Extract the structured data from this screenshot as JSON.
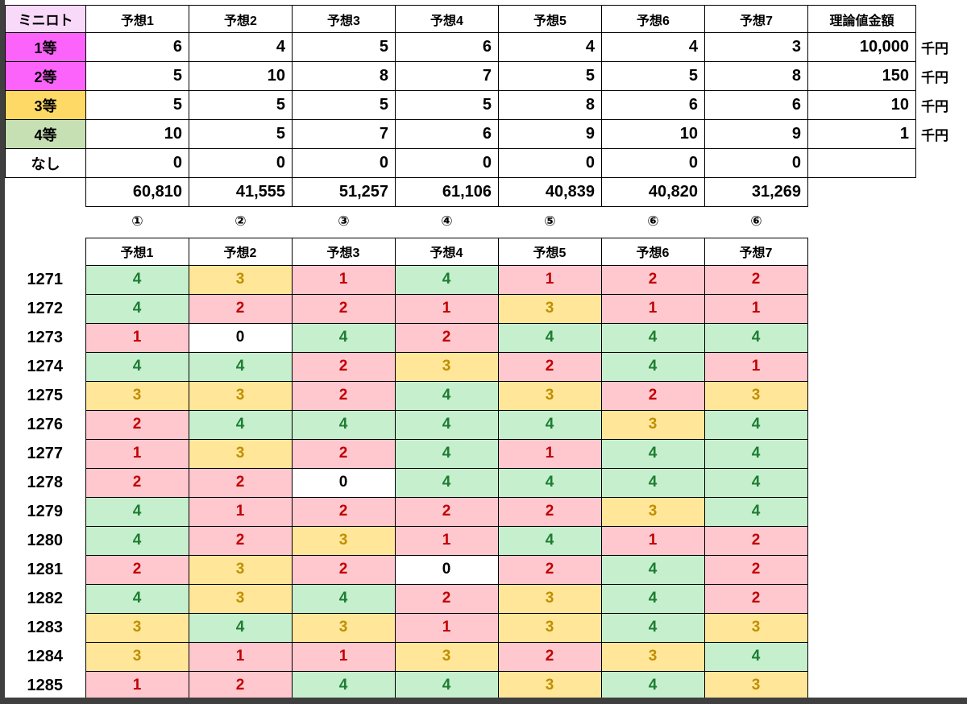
{
  "colors": {
    "cell_green_bg": "#C6EFCE",
    "cell_green_text": "#1E7D32",
    "cell_pink_bg": "#FFC7CE",
    "cell_pink_text": "#C00000",
    "cell_yellow_bg": "#FFE699",
    "cell_yellow_text": "#BF8F00",
    "label_magenta": "#FB63FB",
    "label_yellow": "#FFD966",
    "label_green": "#C6E0B4",
    "title_pink": "#F9D9F9",
    "frame": "#3F3F3F",
    "grid_border": "#000000"
  },
  "top_table": {
    "title": "ミニロト",
    "headers": [
      "予想1",
      "予想2",
      "予想3",
      "予想4",
      "予想5",
      "予想6",
      "予想7"
    ],
    "amount_header": "理論値金額",
    "rows": [
      {
        "label": "1等",
        "style": "magenta",
        "values": [
          "6",
          "4",
          "5",
          "6",
          "4",
          "4",
          "3"
        ],
        "amount": "10,000",
        "unit": "千円"
      },
      {
        "label": "2等",
        "style": "magenta",
        "values": [
          "5",
          "10",
          "8",
          "7",
          "5",
          "5",
          "8"
        ],
        "amount": "150",
        "unit": "千円"
      },
      {
        "label": "3等",
        "style": "yellow",
        "values": [
          "5",
          "5",
          "5",
          "5",
          "8",
          "6",
          "6"
        ],
        "amount": "10",
        "unit": "千円"
      },
      {
        "label": "4等",
        "style": "green",
        "values": [
          "10",
          "5",
          "7",
          "6",
          "9",
          "10",
          "9"
        ],
        "amount": "1",
        "unit": "千円"
      },
      {
        "label": "なし",
        "style": "plain",
        "values": [
          "0",
          "0",
          "0",
          "0",
          "0",
          "0",
          "0"
        ],
        "amount": "",
        "unit": ""
      }
    ],
    "totals": [
      "60,810",
      "41,555",
      "51,257",
      "61,106",
      "40,839",
      "40,820",
      "31,269"
    ],
    "rank_marks": [
      "①",
      "②",
      "③",
      "④",
      "⑤",
      "⑥",
      "⑥"
    ]
  },
  "results_table": {
    "headers": [
      "予想1",
      "予想2",
      "予想3",
      "予想4",
      "予想5",
      "予想6",
      "予想7"
    ],
    "rows": [
      {
        "draw": "1271",
        "cells": [
          {
            "v": "4",
            "s": "green"
          },
          {
            "v": "3",
            "s": "yellow"
          },
          {
            "v": "1",
            "s": "pink"
          },
          {
            "v": "4",
            "s": "green"
          },
          {
            "v": "1",
            "s": "pink"
          },
          {
            "v": "2",
            "s": "pink"
          },
          {
            "v": "2",
            "s": "pink"
          }
        ]
      },
      {
        "draw": "1272",
        "cells": [
          {
            "v": "4",
            "s": "green"
          },
          {
            "v": "2",
            "s": "pink"
          },
          {
            "v": "2",
            "s": "pink"
          },
          {
            "v": "1",
            "s": "pink"
          },
          {
            "v": "3",
            "s": "yellow"
          },
          {
            "v": "1",
            "s": "pink"
          },
          {
            "v": "1",
            "s": "pink"
          }
        ]
      },
      {
        "draw": "1273",
        "cells": [
          {
            "v": "1",
            "s": "pink"
          },
          {
            "v": "0",
            "s": "white"
          },
          {
            "v": "4",
            "s": "green"
          },
          {
            "v": "2",
            "s": "pink"
          },
          {
            "v": "4",
            "s": "green"
          },
          {
            "v": "4",
            "s": "green"
          },
          {
            "v": "4",
            "s": "green"
          }
        ]
      },
      {
        "draw": "1274",
        "cells": [
          {
            "v": "4",
            "s": "green"
          },
          {
            "v": "4",
            "s": "green"
          },
          {
            "v": "2",
            "s": "pink"
          },
          {
            "v": "3",
            "s": "yellow"
          },
          {
            "v": "2",
            "s": "pink"
          },
          {
            "v": "4",
            "s": "green"
          },
          {
            "v": "1",
            "s": "pink"
          }
        ]
      },
      {
        "draw": "1275",
        "cells": [
          {
            "v": "3",
            "s": "yellow"
          },
          {
            "v": "3",
            "s": "yellow"
          },
          {
            "v": "2",
            "s": "pink"
          },
          {
            "v": "4",
            "s": "green"
          },
          {
            "v": "3",
            "s": "yellow"
          },
          {
            "v": "2",
            "s": "pink"
          },
          {
            "v": "3",
            "s": "yellow"
          }
        ]
      },
      {
        "draw": "1276",
        "cells": [
          {
            "v": "2",
            "s": "pink"
          },
          {
            "v": "4",
            "s": "green"
          },
          {
            "v": "4",
            "s": "green"
          },
          {
            "v": "4",
            "s": "green"
          },
          {
            "v": "4",
            "s": "green"
          },
          {
            "v": "3",
            "s": "yellow"
          },
          {
            "v": "4",
            "s": "green"
          }
        ]
      },
      {
        "draw": "1277",
        "cells": [
          {
            "v": "1",
            "s": "pink"
          },
          {
            "v": "3",
            "s": "yellow"
          },
          {
            "v": "2",
            "s": "pink"
          },
          {
            "v": "4",
            "s": "green"
          },
          {
            "v": "1",
            "s": "pink"
          },
          {
            "v": "4",
            "s": "green"
          },
          {
            "v": "4",
            "s": "green"
          }
        ]
      },
      {
        "draw": "1278",
        "cells": [
          {
            "v": "2",
            "s": "pink"
          },
          {
            "v": "2",
            "s": "pink"
          },
          {
            "v": "0",
            "s": "white"
          },
          {
            "v": "4",
            "s": "green"
          },
          {
            "v": "4",
            "s": "green"
          },
          {
            "v": "4",
            "s": "green"
          },
          {
            "v": "4",
            "s": "green"
          }
        ]
      },
      {
        "draw": "1279",
        "cells": [
          {
            "v": "4",
            "s": "green"
          },
          {
            "v": "1",
            "s": "pink"
          },
          {
            "v": "2",
            "s": "pink"
          },
          {
            "v": "2",
            "s": "pink"
          },
          {
            "v": "2",
            "s": "pink"
          },
          {
            "v": "3",
            "s": "yellow"
          },
          {
            "v": "4",
            "s": "green"
          }
        ]
      },
      {
        "draw": "1280",
        "cells": [
          {
            "v": "4",
            "s": "green"
          },
          {
            "v": "2",
            "s": "pink"
          },
          {
            "v": "3",
            "s": "yellow"
          },
          {
            "v": "1",
            "s": "pink"
          },
          {
            "v": "4",
            "s": "green"
          },
          {
            "v": "1",
            "s": "pink"
          },
          {
            "v": "2",
            "s": "pink"
          }
        ]
      },
      {
        "draw": "1281",
        "cells": [
          {
            "v": "2",
            "s": "pink"
          },
          {
            "v": "3",
            "s": "yellow"
          },
          {
            "v": "2",
            "s": "pink"
          },
          {
            "v": "0",
            "s": "white"
          },
          {
            "v": "2",
            "s": "pink"
          },
          {
            "v": "4",
            "s": "green"
          },
          {
            "v": "2",
            "s": "pink"
          }
        ]
      },
      {
        "draw": "1282",
        "cells": [
          {
            "v": "4",
            "s": "green"
          },
          {
            "v": "3",
            "s": "yellow"
          },
          {
            "v": "4",
            "s": "green"
          },
          {
            "v": "2",
            "s": "pink"
          },
          {
            "v": "3",
            "s": "yellow"
          },
          {
            "v": "4",
            "s": "green"
          },
          {
            "v": "2",
            "s": "pink"
          }
        ]
      },
      {
        "draw": "1283",
        "cells": [
          {
            "v": "3",
            "s": "yellow"
          },
          {
            "v": "4",
            "s": "green"
          },
          {
            "v": "3",
            "s": "yellow"
          },
          {
            "v": "1",
            "s": "pink"
          },
          {
            "v": "3",
            "s": "yellow"
          },
          {
            "v": "4",
            "s": "green"
          },
          {
            "v": "3",
            "s": "yellow"
          }
        ]
      },
      {
        "draw": "1284",
        "cells": [
          {
            "v": "3",
            "s": "yellow"
          },
          {
            "v": "1",
            "s": "pink"
          },
          {
            "v": "1",
            "s": "pink"
          },
          {
            "v": "3",
            "s": "yellow"
          },
          {
            "v": "2",
            "s": "pink"
          },
          {
            "v": "3",
            "s": "yellow"
          },
          {
            "v": "4",
            "s": "green"
          }
        ]
      },
      {
        "draw": "1285",
        "cells": [
          {
            "v": "1",
            "s": "pink"
          },
          {
            "v": "2",
            "s": "pink"
          },
          {
            "v": "4",
            "s": "green"
          },
          {
            "v": "4",
            "s": "green"
          },
          {
            "v": "3",
            "s": "yellow"
          },
          {
            "v": "4",
            "s": "green"
          },
          {
            "v": "3",
            "s": "yellow"
          }
        ]
      }
    ]
  }
}
